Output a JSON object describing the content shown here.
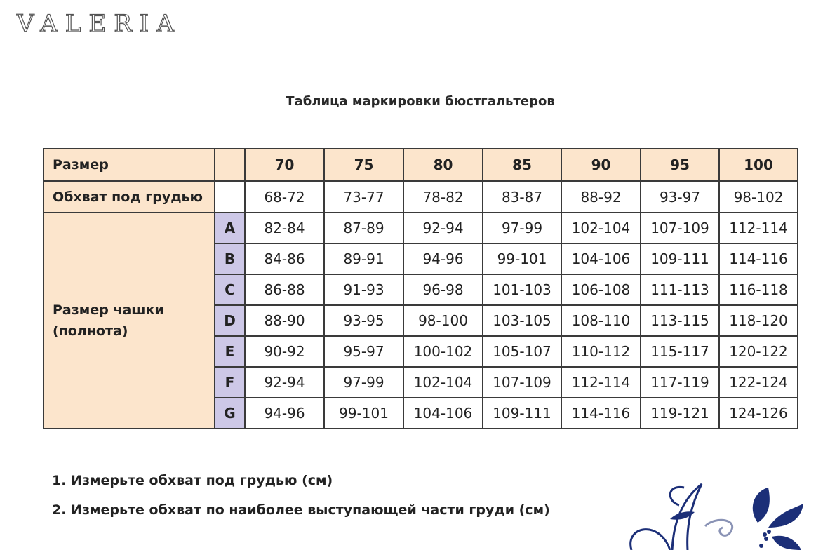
{
  "logo": "VALERIA",
  "title": "Таблица маркировки бюстгальтеров",
  "table": {
    "size_label": "Размер",
    "underbust_label": "Обхват под грудью",
    "cup_label_line1": "Размер чашки",
    "cup_label_line2": "(полнота)",
    "sizes": [
      "70",
      "75",
      "80",
      "85",
      "90",
      "95",
      "100"
    ],
    "underbust": [
      "68-72",
      "73-77",
      "78-82",
      "83-87",
      "88-92",
      "93-97",
      "98-102"
    ],
    "cups": [
      {
        "letter": "A",
        "values": [
          "82-84",
          "87-89",
          "92-94",
          "97-99",
          "102-104",
          "107-109",
          "112-114"
        ]
      },
      {
        "letter": "B",
        "values": [
          "84-86",
          "89-91",
          "94-96",
          "99-101",
          "104-106",
          "109-111",
          "114-116"
        ]
      },
      {
        "letter": "C",
        "values": [
          "86-88",
          "91-93",
          "96-98",
          "101-103",
          "106-108",
          "111-113",
          "116-118"
        ]
      },
      {
        "letter": "D",
        "values": [
          "88-90",
          "93-95",
          "98-100",
          "103-105",
          "108-110",
          "113-115",
          "118-120"
        ]
      },
      {
        "letter": "E",
        "values": [
          "90-92",
          "95-97",
          "100-102",
          "105-107",
          "110-112",
          "115-117",
          "120-122"
        ]
      },
      {
        "letter": "F",
        "values": [
          "92-94",
          "97-99",
          "102-104",
          "107-109",
          "112-114",
          "117-119",
          "122-124"
        ]
      },
      {
        "letter": "G",
        "values": [
          "94-96",
          "99-101",
          "104-106",
          "109-111",
          "114-116",
          "119-121",
          "124-126"
        ]
      }
    ],
    "colors": {
      "header_bg": "#fce5cc",
      "letter_bg": "#cdc8e7",
      "border": "#3a3a3a"
    }
  },
  "notes": [
    "1. Измерьте обхват под грудью (см)",
    "2. Измерьте обхват по наиболее выступающей части груди (см)"
  ],
  "ornament_color": "#1c2f78"
}
